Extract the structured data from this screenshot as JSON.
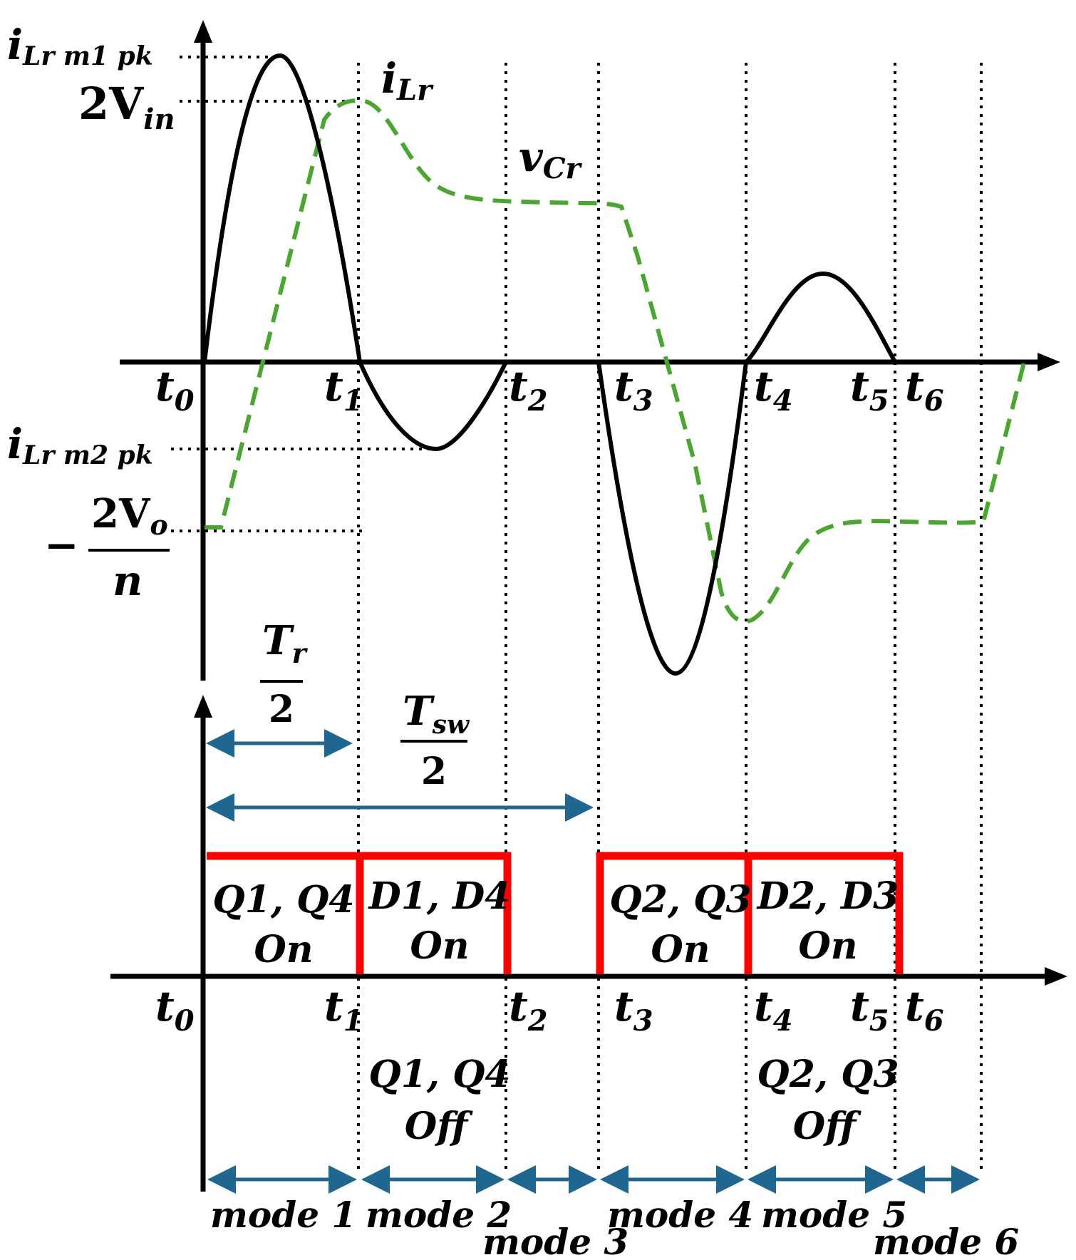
{
  "colors": {
    "current": "#000000",
    "voltage": "#4aa630",
    "gate": "#ff0000",
    "dimension": "#1f6790",
    "axis": "#000000"
  },
  "y_labels": {
    "peak1": {
      "base": "i",
      "sub": "Lr m1 pk"
    },
    "two_vin": {
      "base": "2V",
      "sub": "in"
    },
    "peak2": {
      "base": "i",
      "sub": "Lr m2 pk"
    },
    "neg_vo": {
      "sign": "−",
      "num_base": "2V",
      "num_sub": "o",
      "den": "n"
    }
  },
  "curve_labels": {
    "current": {
      "base": "i",
      "sub": "Lr"
    },
    "voltage": {
      "base": "v",
      "sub": "Cr"
    }
  },
  "time_marks": [
    {
      "base": "t",
      "sub": "0"
    },
    {
      "base": "t",
      "sub": "1"
    },
    {
      "base": "t",
      "sub": "2"
    },
    {
      "base": "t",
      "sub": "3"
    },
    {
      "base": "t",
      "sub": "4"
    },
    {
      "base": "t",
      "sub": "5"
    },
    {
      "base": "t",
      "sub": "6"
    }
  ],
  "intervals": {
    "tr_half": {
      "num_base": "T",
      "num_sub": "r",
      "den": "2"
    },
    "tsw_half": {
      "num_base": "T",
      "num_sub": "sw",
      "den": "2"
    }
  },
  "gate_blocks": [
    {
      "line1": "Q1, Q4",
      "line2": "On"
    },
    {
      "line1": "D1, D4",
      "line2": "On"
    },
    {
      "line1": "Q2, Q3",
      "line2": "On"
    },
    {
      "line1": "D2, D3",
      "line2": "On"
    }
  ],
  "off_labels": [
    {
      "line1": "Q1, Q4",
      "line2": "Off"
    },
    {
      "line1": "Q2, Q3",
      "line2": "Off"
    }
  ],
  "modes": [
    "mode 1",
    "mode 2",
    "mode 3",
    "mode 4",
    "mode 5",
    "mode 6"
  ]
}
